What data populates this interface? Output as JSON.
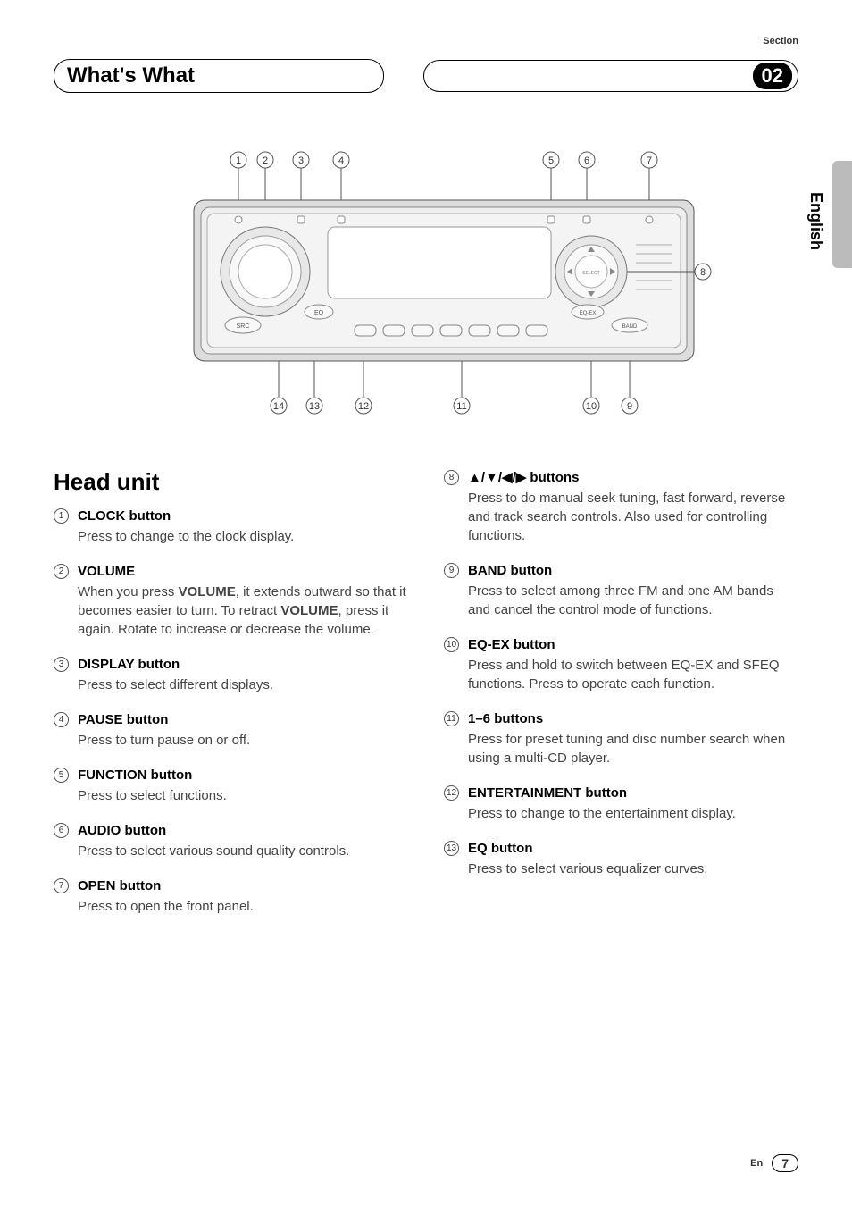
{
  "header": {
    "section_label": "Section",
    "title": "What's What",
    "section_number": "02"
  },
  "side_language": "English",
  "diagram": {
    "top_callouts": [
      "1",
      "2",
      "3",
      "4",
      "5",
      "6",
      "7"
    ],
    "right_callout": "8",
    "bottom_callouts": [
      "14",
      "13",
      "12",
      "11",
      "10",
      "9"
    ],
    "labels": {
      "src": "SRC",
      "eq": "EQ",
      "eqex": "EQ-EX",
      "band": "BAND",
      "select": "SELECT"
    }
  },
  "heading": "Head unit",
  "left_items": [
    {
      "n": "1",
      "title": "CLOCK button",
      "desc": "Press to change to the clock display."
    },
    {
      "n": "2",
      "title": "VOLUME",
      "desc": "When you press <b>VOLUME</b>, it extends outward so that it becomes easier to turn. To retract <b>VOLUME</b>, press it again. Rotate to increase or decrease the volume."
    },
    {
      "n": "3",
      "title": "DISPLAY button",
      "desc": "Press to select different displays."
    },
    {
      "n": "4",
      "title": "PAUSE button",
      "desc": "Press to turn pause on or off."
    },
    {
      "n": "5",
      "title": "FUNCTION button",
      "desc": "Press to select functions."
    },
    {
      "n": "6",
      "title": "AUDIO button",
      "desc": "Press to select various sound quality controls."
    },
    {
      "n": "7",
      "title": "OPEN button",
      "desc": "Press to open the front panel."
    }
  ],
  "right_items": [
    {
      "n": "8",
      "title": "▲/▼/◀/▶ buttons",
      "desc": "Press to do manual seek tuning, fast forward, reverse and track search controls. Also used for controlling functions."
    },
    {
      "n": "9",
      "title": "BAND button",
      "desc": "Press to select among three FM and one AM bands and cancel the control mode of functions."
    },
    {
      "n": "10",
      "title": "EQ-EX button",
      "desc": "Press and hold to switch between EQ-EX and SFEQ functions. Press to operate each function."
    },
    {
      "n": "11",
      "title": "1–6 buttons",
      "desc": "Press for preset tuning and disc number search when using a multi-CD player."
    },
    {
      "n": "12",
      "title": "ENTERTAINMENT button",
      "desc": "Press to change to the entertainment display."
    },
    {
      "n": "13",
      "title": "EQ button",
      "desc": "Press to select various equalizer curves."
    }
  ],
  "footer": {
    "lang": "En",
    "page": "7"
  }
}
